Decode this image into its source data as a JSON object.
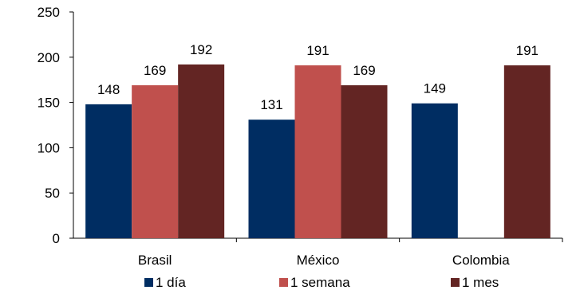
{
  "chart_data": {
    "type": "bar",
    "categories": [
      "Brasil",
      "México",
      "Colombia"
    ],
    "series": [
      {
        "name": "1 día",
        "color": "#002D62",
        "values": [
          148,
          131,
          149
        ]
      },
      {
        "name": "1 semana",
        "color": "#C0504D",
        "values": [
          169,
          191,
          null
        ]
      },
      {
        "name": "1 mes",
        "color": "#632523",
        "values": [
          192,
          169,
          191
        ]
      }
    ],
    "ylim": [
      0,
      250
    ],
    "yticks": [
      0,
      50,
      100,
      150,
      200,
      250
    ],
    "title": "",
    "xlabel": "",
    "ylabel": "",
    "grid": false,
    "legend_position": "bottom"
  }
}
